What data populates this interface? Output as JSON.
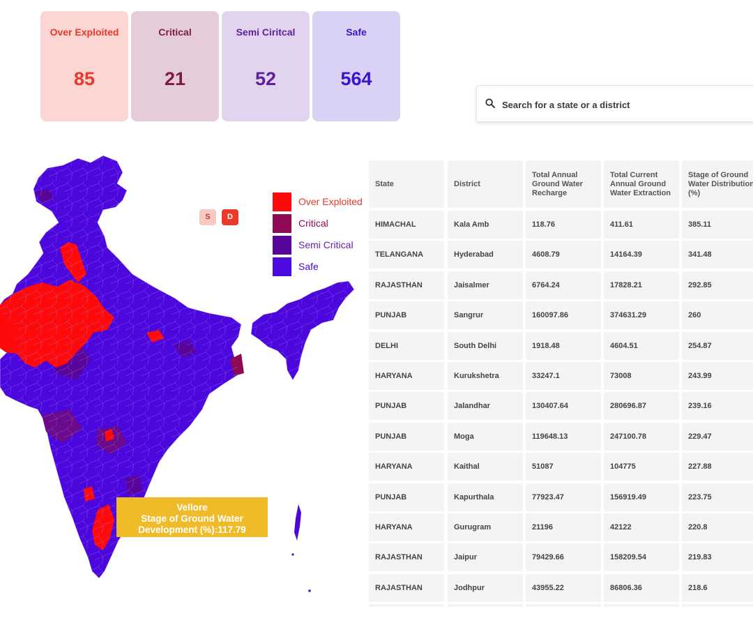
{
  "summary": [
    {
      "title": "Over Exploited",
      "value": "85"
    },
    {
      "title": "Critical",
      "value": "21"
    },
    {
      "title": "Semi Ciritcal",
      "value": "52"
    },
    {
      "title": "Safe",
      "value": "564"
    }
  ],
  "search": {
    "placeholder": "Search for a state or a district",
    "icon": "search-icon"
  },
  "toggles": {
    "state": "S",
    "district": "D"
  },
  "legend": [
    {
      "label": "Over Exploited",
      "color": "#ff0a0a"
    },
    {
      "label": "Critical",
      "color": "#8e0a55"
    },
    {
      "label": "Semi Critical",
      "color": "#5a0599"
    },
    {
      "label": "Safe",
      "color": "#4a0ae0"
    }
  ],
  "tooltip": {
    "district": "Vellore",
    "line2": "Stage of Ground Water",
    "line3": "Development (%):117.79"
  },
  "table": {
    "headers": [
      "State",
      "District",
      "Total Annual Ground Water Recharge",
      "Total Current Annual Ground Water Extraction",
      "Stage of Ground Water Distribution (%)"
    ],
    "rows": [
      [
        "HIMACHAL",
        "Kala Amb",
        "118.76",
        "411.61",
        "385.11"
      ],
      [
        "TELANGANA",
        "Hyderabad",
        "4608.79",
        "14164.39",
        "341.48"
      ],
      [
        "RAJASTHAN",
        "Jaisalmer",
        "6764.24",
        "17828.21",
        "292.85"
      ],
      [
        "PUNJAB",
        "Sangrur",
        "160097.86",
        "374631.29",
        "260"
      ],
      [
        "DELHI",
        "South Delhi",
        "1918.48",
        "4604.51",
        "254.87"
      ],
      [
        "HARYANA",
        "Kurukshetra",
        "33247.1",
        "73008",
        "243.99"
      ],
      [
        "PUNJAB",
        "Jalandhar",
        "130407.64",
        "280696.87",
        "239.16"
      ],
      [
        "PUNJAB",
        "Moga",
        "119648.13",
        "247100.78",
        "229.47"
      ],
      [
        "HARYANA",
        "Kaithal",
        "51087",
        "104775",
        "227.88"
      ],
      [
        "PUNJAB",
        "Kapurthala",
        "77923.47",
        "156919.49",
        "223.75"
      ],
      [
        "HARYANA",
        "Gurugram",
        "21196",
        "42122",
        "220.8"
      ],
      [
        "RAJASTHAN",
        "Jaipur",
        "79429.66",
        "158209.54",
        "219.83"
      ],
      [
        "RAJASTHAN",
        "Jodhpur",
        "43955.22",
        "86806.36",
        "218.6"
      ]
    ]
  }
}
